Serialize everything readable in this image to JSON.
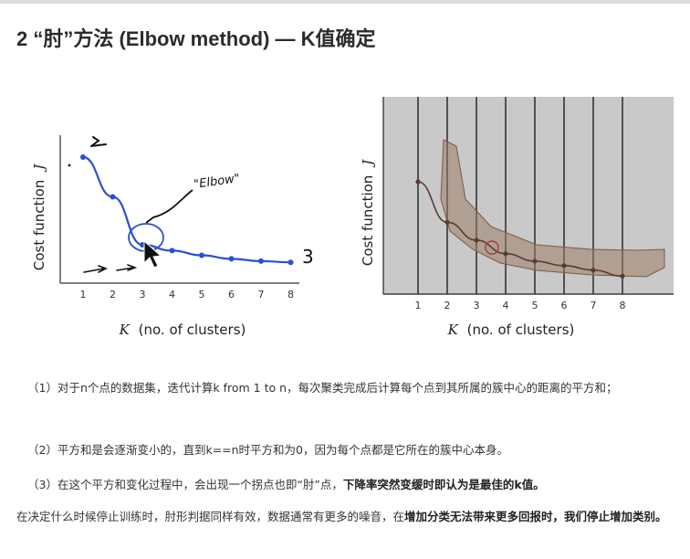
{
  "heading": "2 “肘”方法 (Elbow method) — K值确定",
  "left_figure": {
    "ylabel_text": "Cost function",
    "ylabel_var": "J",
    "xlabel_var": "K",
    "xlabel_text": "(no. of clusters)",
    "ticks": [
      "1",
      "2",
      "3",
      "4",
      "5",
      "6",
      "7",
      "8"
    ],
    "handwriting": "\"Elbow\"",
    "handwriting_three": "3"
  },
  "right_figure": {
    "ylabel_text": "Cost function",
    "ylabel_var": "J",
    "xlabel_var": "K",
    "xlabel_text": "(no. of clusters)",
    "ticks": [
      "1",
      "2",
      "3",
      "4",
      "5",
      "6",
      "7",
      "8"
    ]
  },
  "chart_data": [
    {
      "type": "line",
      "x": [
        1,
        2,
        3,
        4,
        5,
        6,
        7,
        8
      ],
      "values": [
        100,
        66,
        25,
        20,
        16,
        13,
        11,
        10
      ],
      "xlabel": "K (no. of clusters)",
      "ylabel": "Cost function J",
      "grid": false,
      "annotations": [
        "\"Elbow\""
      ],
      "color": "#2a4fd6"
    },
    {
      "type": "line",
      "x": [
        1,
        2,
        3,
        4,
        5,
        6,
        7,
        8
      ],
      "values": [
        75,
        48,
        36,
        27,
        22,
        19,
        16,
        12
      ],
      "xlabel": "K (no. of clusters)",
      "ylabel": "Cost function J",
      "grid": true,
      "color": "#5a3a32"
    }
  ],
  "items": [
    {
      "text": "（1）对于n个点的数据集，迭代计算k from 1 to n，每次聚类完成后计算每个点到其所属的簇中心的距离的平方和；"
    },
    {
      "text": "（2）平方和是会逐渐变小的，直到k==n时平方和为0，因为每个点都是它所在的簇中心本身。"
    },
    {
      "text_plain": "（3）在这个平方和变化过程中，会出现一个拐点也即“肘”点，",
      "text_bold": "下降率突然变缓时即认为是最佳的k值。"
    }
  ],
  "paragraph": {
    "text_plain": "在决定什么时候停止训练时，肘形判据同样有效，数据通常有更多的噪音，在",
    "text_bold": "增加分类无法带来更多回报时，我们停止增加类别。"
  }
}
